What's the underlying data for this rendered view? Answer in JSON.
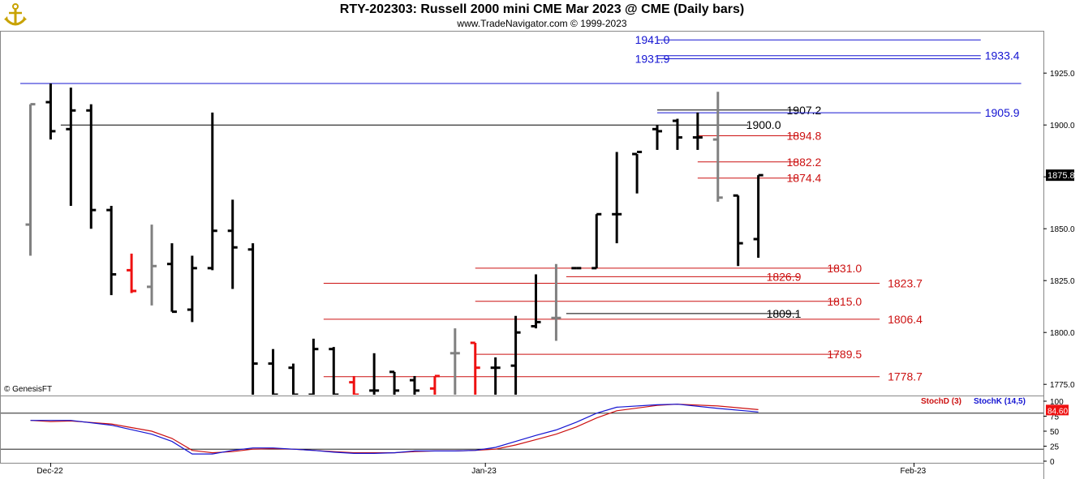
{
  "header": {
    "title": "RTY-202303:  Russell 2000 mini CME Mar 2023 @ CME  (Daily bars)",
    "subtitle": "www.TradeNavigator.com © 1999-2023"
  },
  "watermark": "© GenesisFT",
  "chart_data": {
    "type": "ohlc",
    "price_axis": {
      "ylim": [
        1770,
        1945
      ],
      "ticks": [
        "1925.0",
        "1900.0",
        "1875.0",
        "1850.0",
        "1825.0",
        "1800.0",
        "1775.0"
      ]
    },
    "last_price_label": "1875.8",
    "x_tick_labels": [
      {
        "label": "Dec-22",
        "bar": 1
      },
      {
        "label": "Jan-23",
        "bar": 22.5
      },
      {
        "label": "Feb-23",
        "bar": 43.7
      }
    ],
    "bars": [
      {
        "o": 1852,
        "h": 1910,
        "l": 1837,
        "c": 1910,
        "color": "gray"
      },
      {
        "o": 1911,
        "h": 1920,
        "l": 1893,
        "c": 1897,
        "color": "black"
      },
      {
        "o": 1898,
        "h": 1918,
        "l": 1861,
        "c": 1907,
        "color": "black"
      },
      {
        "o": 1907,
        "h": 1910,
        "l": 1850,
        "c": 1859,
        "color": "black"
      },
      {
        "o": 1859,
        "h": 1861,
        "l": 1818,
        "c": 1828,
        "color": "black"
      },
      {
        "o": 1830,
        "h": 1838,
        "l": 1819,
        "c": 1820,
        "color": "red"
      },
      {
        "o": 1822,
        "h": 1852,
        "l": 1813,
        "c": 1832,
        "color": "gray"
      },
      {
        "o": 1833,
        "h": 1843,
        "l": 1810,
        "c": 1810,
        "color": "black"
      },
      {
        "o": 1811,
        "h": 1837,
        "l": 1805,
        "c": 1831,
        "color": "black"
      },
      {
        "o": 1831,
        "h": 1906,
        "l": 1830,
        "c": 1849,
        "color": "black"
      },
      {
        "o": 1849,
        "h": 1864,
        "l": 1821,
        "c": 1841,
        "color": "black"
      },
      {
        "o": 1840,
        "h": 1843,
        "l": 1770,
        "c": 1785,
        "color": "black"
      },
      {
        "o": 1785,
        "h": 1792,
        "l": 1770,
        "c": 1770,
        "color": "black"
      },
      {
        "o": 1783,
        "h": 1785,
        "l": 1770,
        "c": 1770,
        "color": "black"
      },
      {
        "o": 1770,
        "h": 1797,
        "l": 1770,
        "c": 1792,
        "color": "black"
      },
      {
        "o": 1792,
        "h": 1793,
        "l": 1770,
        "c": 1770,
        "color": "black"
      },
      {
        "o": 1776,
        "h": 1779,
        "l": 1770,
        "c": 1770,
        "color": "red"
      },
      {
        "o": 1772,
        "h": 1790,
        "l": 1770,
        "c": 1772,
        "color": "black"
      },
      {
        "o": 1781,
        "h": 1781,
        "l": 1770,
        "c": 1772,
        "color": "black"
      },
      {
        "o": 1777,
        "h": 1779,
        "l": 1770,
        "c": 1772,
        "color": "black"
      },
      {
        "o": 1773,
        "h": 1779,
        "l": 1770,
        "c": 1779,
        "color": "red"
      },
      {
        "o": 1790,
        "h": 1802,
        "l": 1770,
        "c": 1790,
        "color": "gray"
      },
      {
        "o": 1795,
        "h": 1795,
        "l": 1770,
        "c": 1783,
        "color": "red"
      },
      {
        "o": 1783,
        "h": 1788,
        "l": 1770,
        "c": 1783,
        "color": "black"
      },
      {
        "o": 1784,
        "h": 1808,
        "l": 1770,
        "c": 1800,
        "color": "black"
      },
      {
        "o": 1803,
        "h": 1828,
        "l": 1802,
        "c": 1805,
        "color": "black"
      },
      {
        "o": 1807,
        "h": 1833,
        "l": 1796,
        "c": 1807,
        "color": "gray"
      },
      {
        "o": 1831,
        "h": 1831,
        "l": 1831,
        "c": 1831,
        "color": "black"
      },
      {
        "o": 1831,
        "h": 1857,
        "l": 1831,
        "c": 1857,
        "color": "black"
      },
      {
        "o": 1857,
        "h": 1887,
        "l": 1843,
        "c": 1857,
        "color": "black"
      },
      {
        "o": 1886,
        "h": 1886,
        "l": 1867,
        "c": 1887,
        "color": "black"
      },
      {
        "o": 1898,
        "h": 1900,
        "l": 1888,
        "c": 1897,
        "color": "black"
      },
      {
        "o": 1902,
        "h": 1903,
        "l": 1888,
        "c": 1894,
        "color": "black"
      },
      {
        "o": 1894,
        "h": 1906,
        "l": 1888,
        "c": 1894,
        "color": "black"
      },
      {
        "o": 1893,
        "h": 1916,
        "l": 1863,
        "c": 1865,
        "color": "gray"
      },
      {
        "o": 1866,
        "h": 1866,
        "l": 1832,
        "c": 1843,
        "color": "black"
      },
      {
        "o": 1845,
        "h": 1875.8,
        "l": 1836,
        "c": 1875.8,
        "color": "black"
      }
    ],
    "levels": [
      {
        "value": 1941.0,
        "label": "1941.0",
        "color": "#1414d2",
        "from_bar": 31,
        "to_bar": 47,
        "label_side": "left",
        "label_bar": 29.9
      },
      {
        "value": 1933.4,
        "label": "1933.4",
        "color": "#1414d2",
        "from_bar": 31,
        "to_bar": 47,
        "label_side": "right",
        "label_bar": 47.2
      },
      {
        "value": 1931.9,
        "label": "1931.9",
        "color": "#1414d2",
        "from_bar": 31,
        "to_bar": 47,
        "label_side": "left",
        "label_bar": 29.9
      },
      {
        "value": 1920.0,
        "label": "",
        "color": "#1414d2",
        "from_bar": -0.5,
        "to_bar": 49
      },
      {
        "value": 1907.2,
        "label": "1907.2",
        "color": "#000000",
        "from_bar": 31,
        "to_bar": 38,
        "label_side": "left",
        "label_bar": 37.4
      },
      {
        "value": 1905.9,
        "label": "1905.9",
        "color": "#1414d2",
        "from_bar": 31,
        "to_bar": 47,
        "label_side": "right",
        "label_bar": 47.2
      },
      {
        "value": 1900.0,
        "label": "1900.0",
        "color": "#000000",
        "from_bar": 1.5,
        "to_bar": 35.5,
        "label_side": "left",
        "label_bar": 35.4
      },
      {
        "value": 1894.8,
        "label": "1894.8",
        "color": "#cc1111",
        "from_bar": 33,
        "to_bar": 38,
        "label_side": "left",
        "label_bar": 37.4
      },
      {
        "value": 1882.2,
        "label": "1882.2",
        "color": "#cc1111",
        "from_bar": 33,
        "to_bar": 38,
        "label_side": "left",
        "label_bar": 37.4
      },
      {
        "value": 1874.4,
        "label": "1874.4",
        "color": "#cc1111",
        "from_bar": 33,
        "to_bar": 38,
        "label_side": "left",
        "label_bar": 37.4
      },
      {
        "value": 1831.0,
        "label": "1831.0",
        "color": "#cc1111",
        "from_bar": 22,
        "to_bar": 40,
        "label_side": "left",
        "label_bar": 39.4
      },
      {
        "value": 1826.9,
        "label": "1826.9",
        "color": "#cc1111",
        "from_bar": 26.5,
        "to_bar": 38,
        "label_side": "left",
        "label_bar": 36.4
      },
      {
        "value": 1823.7,
        "label": "1823.7",
        "color": "#cc1111",
        "from_bar": 14.5,
        "to_bar": 42,
        "label_side": "left",
        "label_bar": 42.4
      },
      {
        "value": 1815.0,
        "label": "1815.0",
        "color": "#cc1111",
        "from_bar": 22,
        "to_bar": 40,
        "label_side": "left",
        "label_bar": 39.4
      },
      {
        "value": 1809.1,
        "label": "1809.1",
        "color": "#000000",
        "from_bar": 26.5,
        "to_bar": 38,
        "label_side": "left",
        "label_bar": 36.4
      },
      {
        "value": 1806.4,
        "label": "1806.4",
        "color": "#cc1111",
        "from_bar": 14.5,
        "to_bar": 42,
        "label_side": "left",
        "label_bar": 42.4
      },
      {
        "value": 1789.5,
        "label": "1789.5",
        "color": "#cc1111",
        "from_bar": 22,
        "to_bar": 40,
        "label_side": "left",
        "label_bar": 39.4
      },
      {
        "value": 1778.7,
        "label": "1778.7",
        "color": "#cc1111",
        "from_bar": 14.5,
        "to_bar": 42,
        "label_side": "left",
        "label_bar": 42.4
      }
    ],
    "indicator": {
      "ylim": [
        0,
        100
      ],
      "ticks": [
        "100",
        "75",
        "50",
        "25",
        "0"
      ],
      "reference_lines": [
        80,
        20
      ],
      "current_value_label": "84.60",
      "legend": [
        {
          "name": "StochD (3)",
          "color": "#cc1111"
        },
        {
          "name": "StochK (14,5)",
          "color": "#1414d2"
        }
      ],
      "stoch_k": [
        68,
        68,
        68,
        60,
        45,
        33,
        12,
        12,
        18,
        22,
        22,
        20,
        18,
        15,
        13,
        13,
        14,
        17,
        17,
        17,
        18,
        23,
        33,
        43,
        52,
        65,
        80,
        90,
        94,
        95,
        88,
        82
      ],
      "stoch_k_bars": [
        0,
        1.5,
        2,
        4,
        6,
        7,
        8,
        9,
        10,
        11,
        12,
        13,
        14,
        15,
        16,
        17,
        18,
        19,
        20,
        21,
        22,
        23,
        24,
        25,
        26,
        27,
        28,
        29,
        31,
        32,
        34,
        36
      ],
      "stoch_d": [
        68,
        66,
        67,
        62,
        50,
        38,
        18,
        14,
        16,
        20,
        21,
        20,
        18,
        16,
        14,
        14,
        14,
        16,
        17,
        17,
        18,
        20,
        27,
        36,
        45,
        57,
        72,
        84,
        93,
        95,
        92,
        86
      ],
      "stoch_d_bars": [
        0,
        1,
        2,
        4,
        6,
        7,
        8,
        9,
        10,
        11,
        12,
        13,
        14,
        15,
        16,
        17,
        18,
        19,
        20,
        21,
        22,
        23,
        24,
        25,
        26,
        27,
        28,
        29,
        31,
        32,
        34,
        36
      ]
    }
  }
}
